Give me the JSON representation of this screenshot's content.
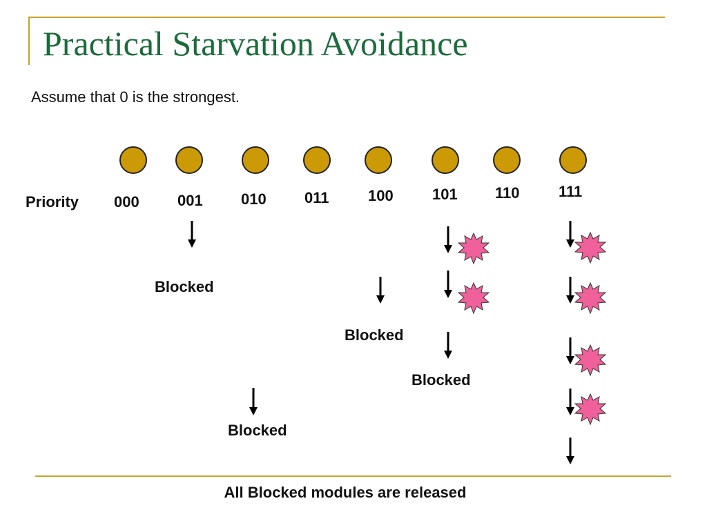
{
  "slide": {
    "title": "Practical Starvation Avoidance",
    "subtitle": "Assume that 0 is the strongest.",
    "priority_label": "Priority",
    "priorities": [
      "000",
      "001",
      "010",
      "011",
      "100",
      "101",
      "110",
      "111"
    ],
    "blocked_labels": [
      "Blocked",
      "Blocked",
      "Blocked",
      "Blocked"
    ],
    "footer": "All Blocked modules are released"
  },
  "colors": {
    "title": "#1c6b3c",
    "accent_line": "#c9a22a",
    "node_fill": "#cc9a06",
    "burst_fill": "#f0609a",
    "arrow": "#000000"
  },
  "icons": {
    "node": "circle-node-icon",
    "arrow": "down-arrow-icon",
    "burst": "starburst-icon"
  }
}
